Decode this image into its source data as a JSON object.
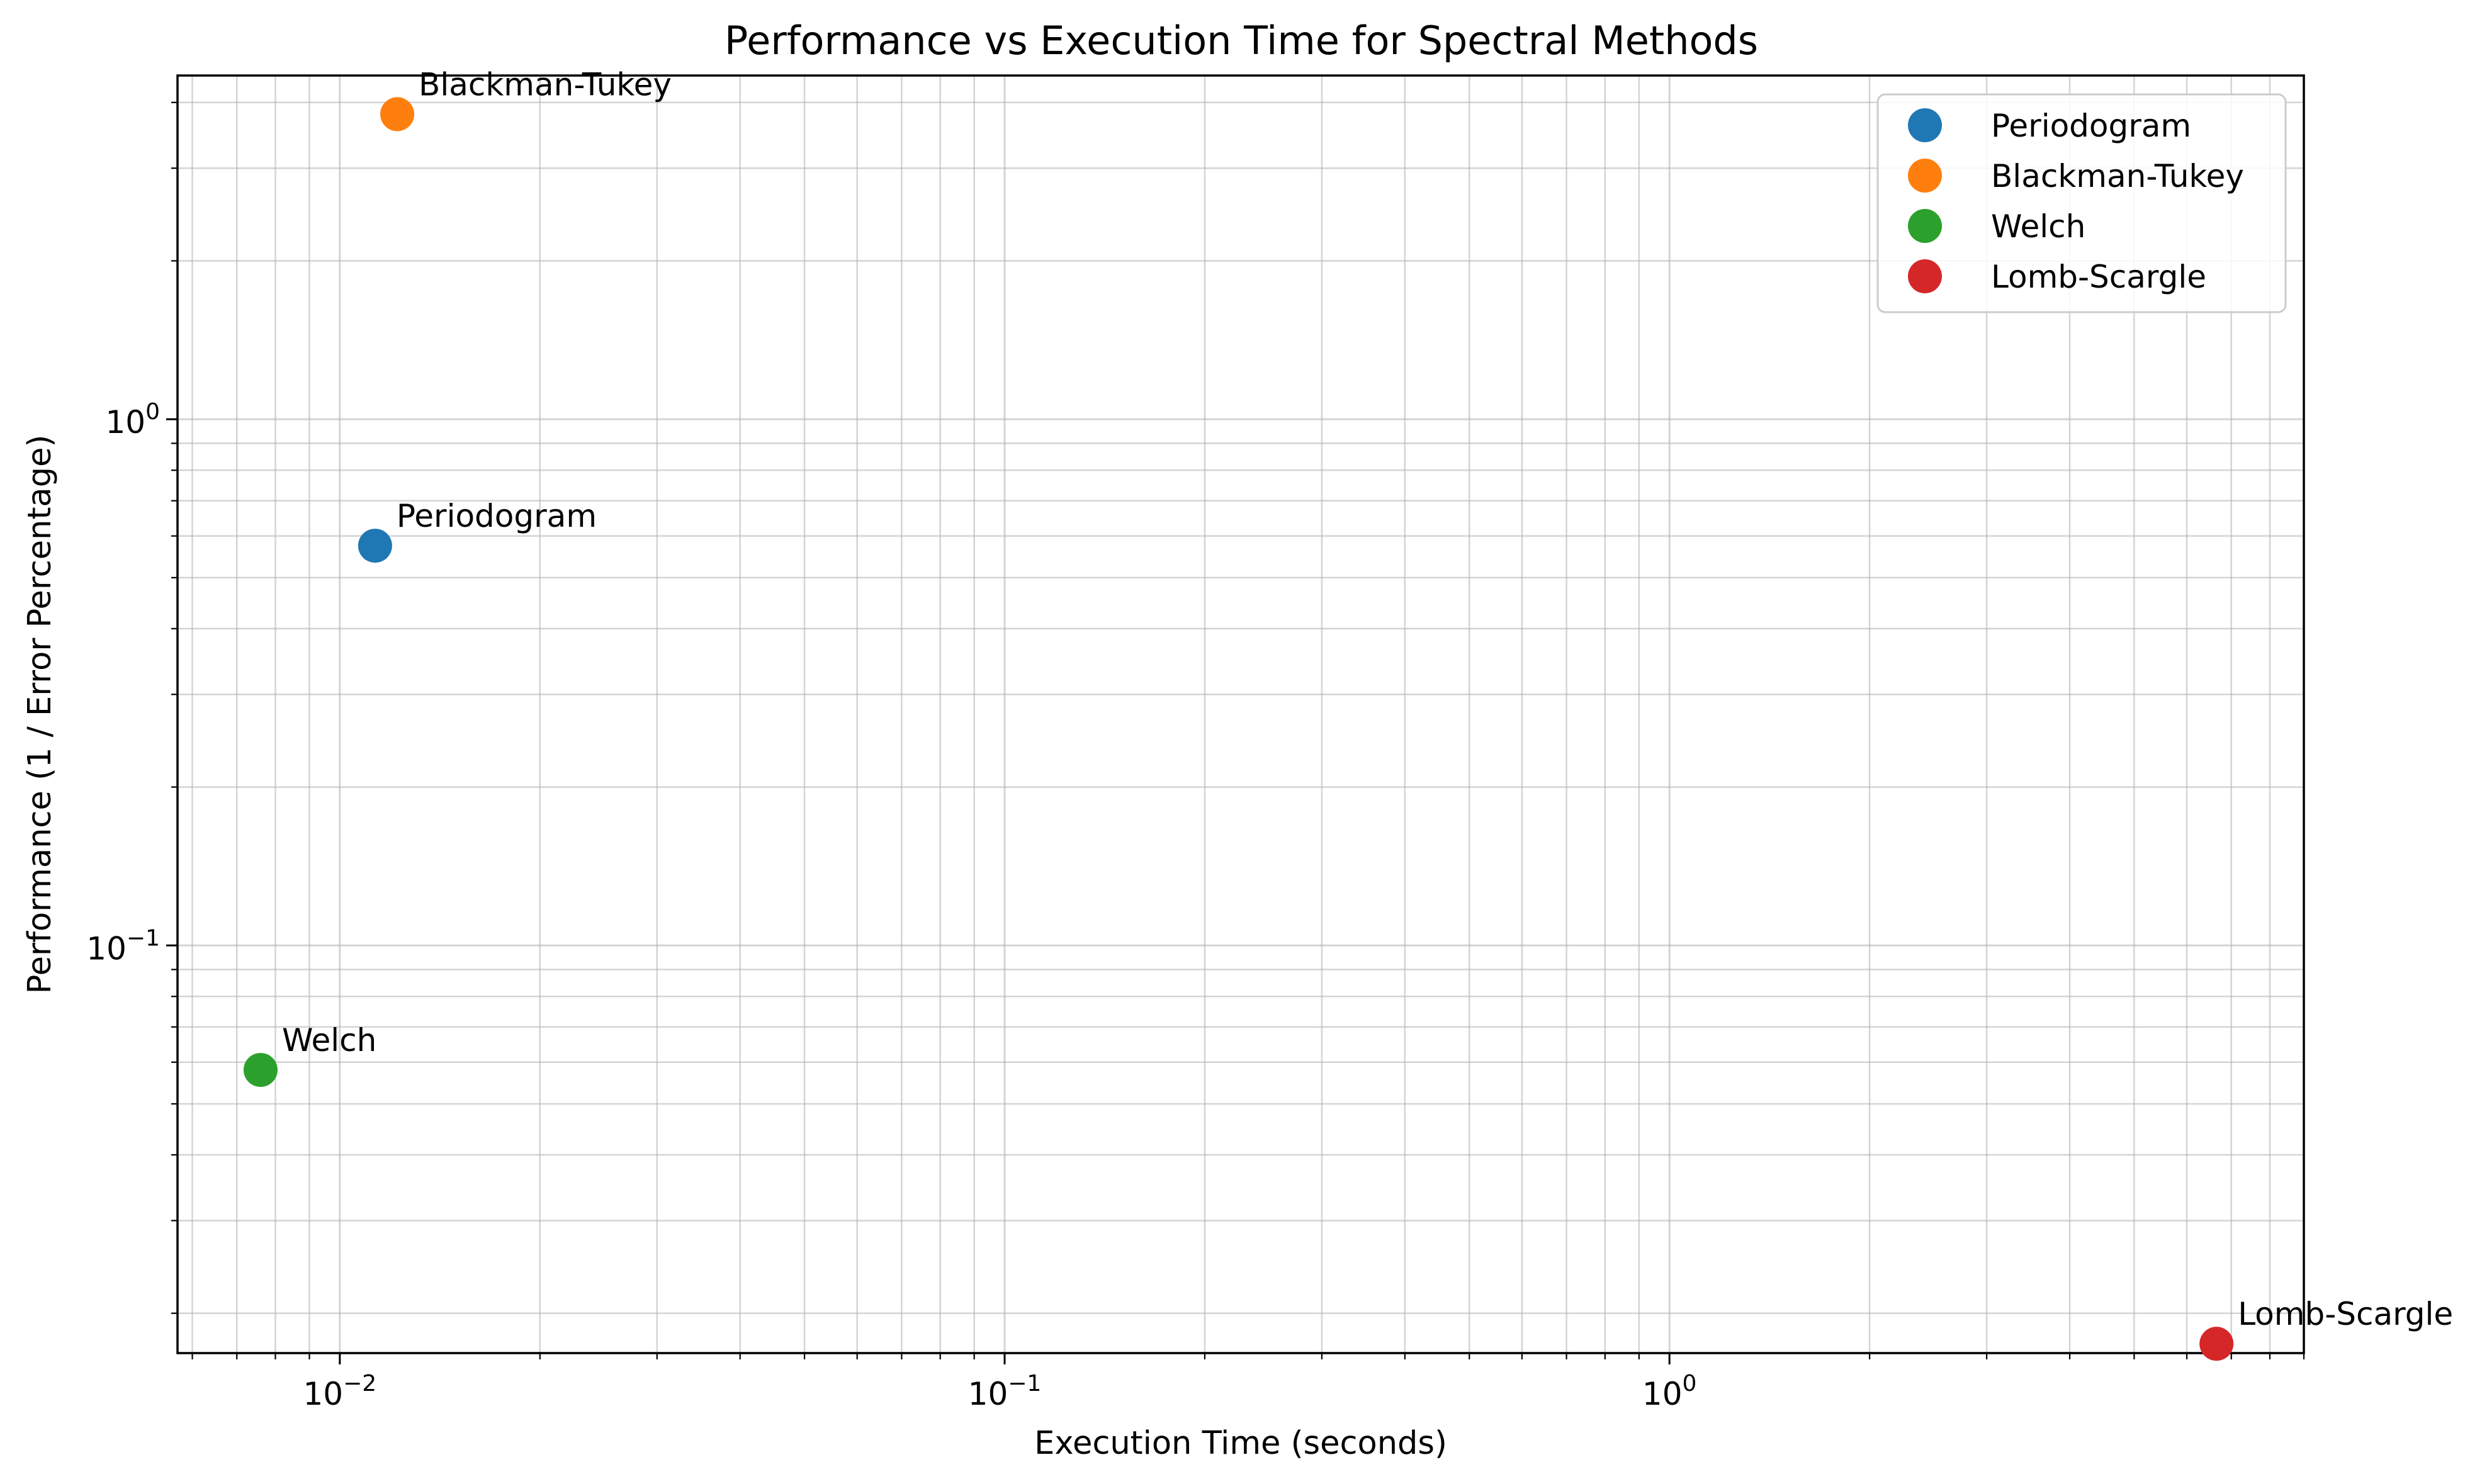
{
  "chart_data": {
    "type": "scatter",
    "title": "Performance vs Execution Time for Spectral Methods",
    "xlabel": "Execution Time (seconds)",
    "ylabel": "Performance (1 / Error Percentage)",
    "xscale": "log",
    "yscale": "log",
    "xlim": [
      0.0057,
      9.0
    ],
    "ylim": [
      0.0168,
      4.5
    ],
    "grid": "major and minor",
    "legend_position": "top-right",
    "x_major_ticks": [
      {
        "value": 0.01,
        "base": "10",
        "exp": "−2"
      },
      {
        "value": 0.1,
        "base": "10",
        "exp": "−1"
      },
      {
        "value": 1,
        "base": "10",
        "exp": "0"
      }
    ],
    "y_major_ticks": [
      {
        "value": 0.1,
        "base": "10",
        "exp": "−1"
      },
      {
        "value": 1,
        "base": "10",
        "exp": "0"
      }
    ],
    "series": [
      {
        "name": "Periodogram",
        "color": "#1f77b4",
        "x": 0.0113,
        "y": 0.575,
        "label": "Periodogram"
      },
      {
        "name": "Blackman-Tukey",
        "color": "#ff7f0e",
        "x": 0.0122,
        "y": 3.8,
        "label": "Blackman-Tukey"
      },
      {
        "name": "Welch",
        "color": "#2ca02c",
        "x": 0.0076,
        "y": 0.058,
        "label": "Welch"
      },
      {
        "name": "Lomb-Scargle",
        "color": "#d62728",
        "x": 6.65,
        "y": 0.0175,
        "label": "Lomb-Scargle"
      }
    ]
  }
}
